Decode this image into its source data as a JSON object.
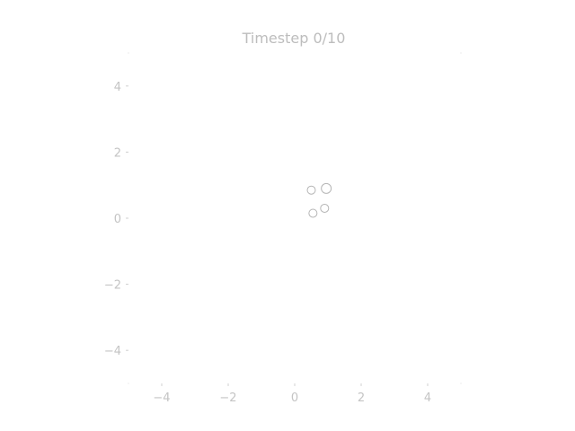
{
  "chart_data": {
    "type": "scatter",
    "title": "Timestep 0/10",
    "xlabel": "",
    "ylabel": "",
    "xlim": [
      -5,
      5
    ],
    "ylim": [
      -5,
      5
    ],
    "xticks": [
      -4,
      -2,
      0,
      2,
      4
    ],
    "yticks": [
      -4,
      -2,
      0,
      2,
      4
    ],
    "xtick_labels": [
      "−4",
      "−2",
      "0",
      "2",
      "4"
    ],
    "ytick_labels": [
      "−4",
      "−2",
      "0",
      "2",
      "4"
    ],
    "grid": false,
    "points": [
      {
        "x": 0.5,
        "y": 0.85,
        "size": "small"
      },
      {
        "x": 0.95,
        "y": 0.9,
        "size": "large"
      },
      {
        "x": 0.55,
        "y": 0.15,
        "size": "small"
      },
      {
        "x": 0.9,
        "y": 0.3,
        "size": "small"
      }
    ],
    "point_color": "#b5b5b5"
  }
}
